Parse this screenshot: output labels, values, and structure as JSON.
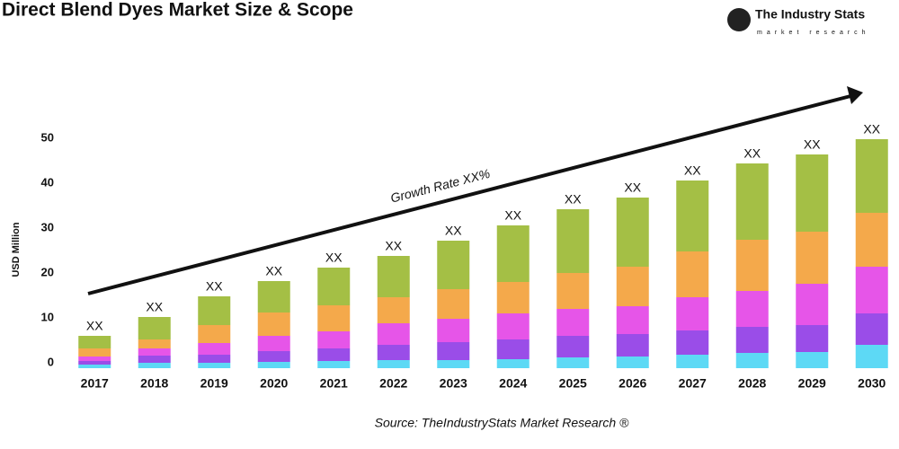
{
  "header": {
    "title": "Direct Blend Dyes Market Size & Scope",
    "logo_name": "The Industry Stats",
    "logo_tagline": "market research"
  },
  "chart_data": {
    "type": "bar",
    "stacked": true,
    "y_label": "USD Million",
    "annotation": "Growth Rate XX%",
    "source": "Source: TheIndustryStats Market Research ®",
    "categories": [
      "2017",
      "2018",
      "2019",
      "2020",
      "2021",
      "2022",
      "2023",
      "2024",
      "2025",
      "2026",
      "2027",
      "2028",
      "2029",
      "2030"
    ],
    "series": [
      {
        "color": "#5dd9f5",
        "values": [
          0.8,
          1.2,
          1.2,
          1.4,
          1.6,
          1.8,
          1.8,
          2,
          2.4,
          2.6,
          3,
          3.4,
          3.6,
          5.2
        ]
      },
      {
        "color": "#9a4de8",
        "values": [
          0.8,
          1.6,
          1.8,
          2.4,
          2.8,
          3.4,
          4,
          4.4,
          4.8,
          5,
          5.4,
          5.8,
          6,
          7
        ]
      },
      {
        "color": "#e655e8",
        "values": [
          1,
          1.6,
          2.6,
          3.4,
          3.8,
          4.8,
          5.2,
          5.8,
          6,
          6.2,
          7.4,
          8,
          9.2,
          10.4
        ]
      },
      {
        "color": "#f4a94b",
        "values": [
          1.8,
          2,
          4,
          5.2,
          5.8,
          5.8,
          6.6,
          7,
          8,
          8.8,
          10.2,
          11.4,
          11.6,
          12
        ]
      },
      {
        "color": "#a4bf45",
        "values": [
          2.8,
          5,
          6.4,
          7,
          8.4,
          9.2,
          10.8,
          12.6,
          14.2,
          15.4,
          15.8,
          17,
          17.2,
          16.4
        ]
      }
    ],
    "value_labels": [
      "XX",
      "XX",
      "XX",
      "XX",
      "XX",
      "XX",
      "XX",
      "XX",
      "XX",
      "XX",
      "XX",
      "XX",
      "XX",
      "XX"
    ],
    "ylim": [
      0,
      52
    ],
    "yticks": [
      0,
      10,
      20,
      30,
      40,
      50
    ],
    "grid": false
  }
}
